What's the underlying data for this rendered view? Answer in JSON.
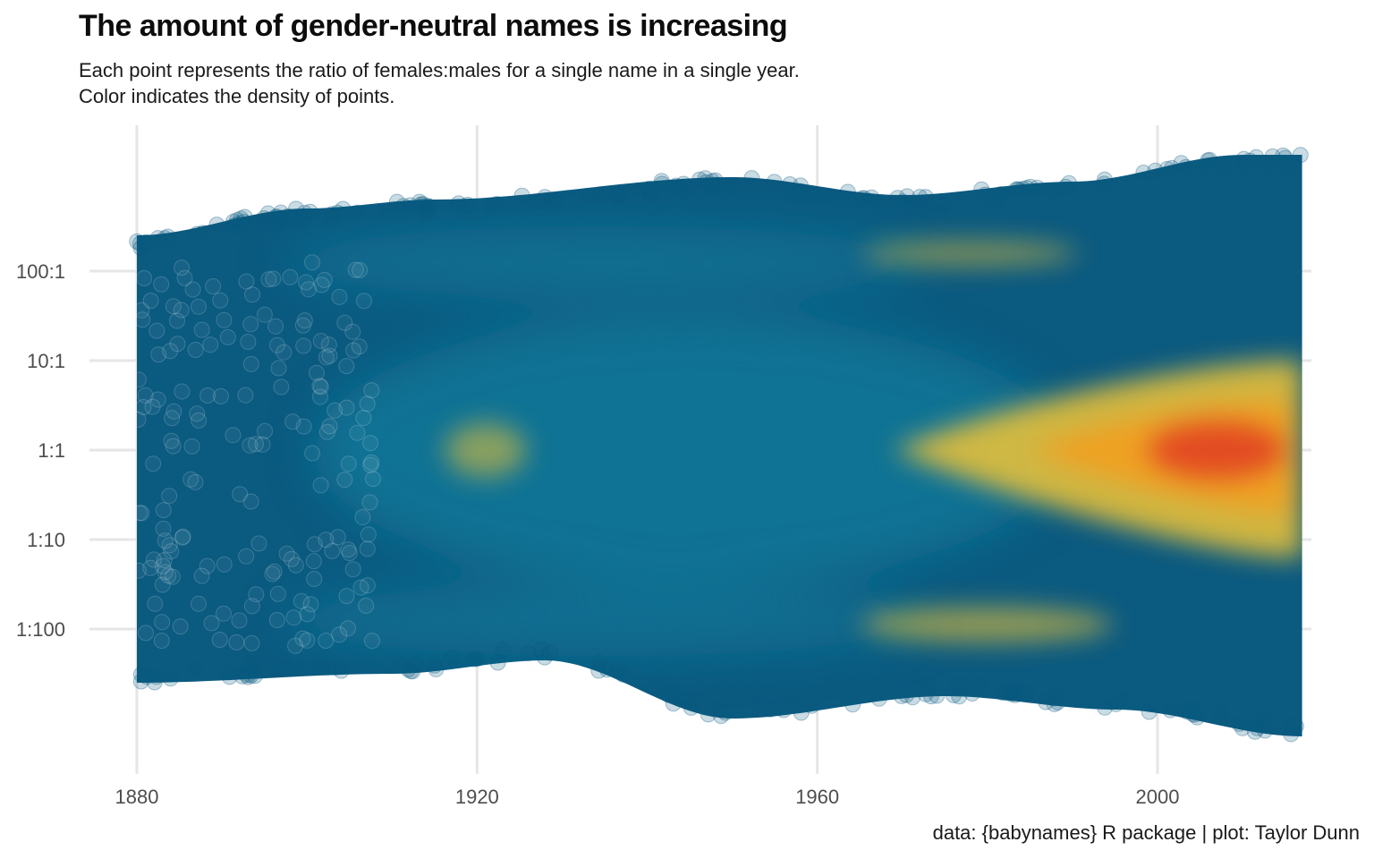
{
  "title": "The amount of gender-neutral names is increasing",
  "subtitle_line1": "Each point represents the ratio of females:males for a single name in a single year.",
  "subtitle_line2": "Color indicates the density of points.",
  "caption": "data: {babynames} R package | plot: Taylor Dunn",
  "chart_data": {
    "type": "scatter",
    "x_ticks": [
      1880,
      1920,
      1960,
      2000
    ],
    "y_ticks": [
      {
        "label": "100:1",
        "value": 2
      },
      {
        "label": "10:1",
        "value": 1
      },
      {
        "label": "1:1",
        "value": 0
      },
      {
        "label": "1:10",
        "value": -1
      },
      {
        "label": "1:100",
        "value": -2
      }
    ],
    "xlim": [
      1880,
      2017
    ],
    "y_scale": "log10 ratio of females to males",
    "grid": true,
    "legend": "none",
    "density_colors": [
      "#0b5a80",
      "#137fa0",
      "#e4c03a",
      "#f0a020",
      "#e24a24"
    ],
    "point_color": "#0b5a80",
    "density_hotspots": [
      {
        "year": 1921,
        "log_ratio": 0.0,
        "level": 0.45
      },
      {
        "year": 1978,
        "log_ratio": 2.2,
        "level": 0.4
      },
      {
        "year": 1980,
        "log_ratio": -1.95,
        "level": 0.55
      },
      {
        "year": 2007,
        "log_ratio": 0.0,
        "level": 1.0
      }
    ],
    "upper_envelope": [
      {
        "year": 1880,
        "log_ratio": 2.4
      },
      {
        "year": 1900,
        "log_ratio": 2.7
      },
      {
        "year": 1915,
        "log_ratio": 2.8
      },
      {
        "year": 1950,
        "log_ratio": 3.05
      },
      {
        "year": 1970,
        "log_ratio": 2.85
      },
      {
        "year": 1990,
        "log_ratio": 3.0
      },
      {
        "year": 2010,
        "log_ratio": 3.3
      },
      {
        "year": 2017,
        "log_ratio": 3.3
      }
    ],
    "lower_envelope": [
      {
        "year": 1880,
        "log_ratio": -2.6
      },
      {
        "year": 1910,
        "log_ratio": -2.5
      },
      {
        "year": 1928,
        "log_ratio": -2.35
      },
      {
        "year": 1950,
        "log_ratio": -3.0
      },
      {
        "year": 1975,
        "log_ratio": -2.75
      },
      {
        "year": 1995,
        "log_ratio": -2.9
      },
      {
        "year": 2017,
        "log_ratio": -3.2
      }
    ]
  }
}
